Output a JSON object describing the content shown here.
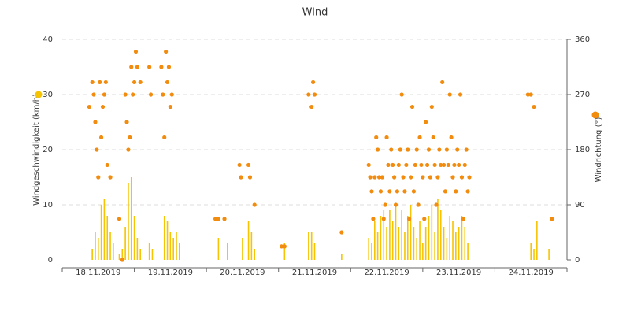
{
  "chart_data": {
    "type": "combo",
    "title": "Wind",
    "grid": true,
    "xlim": [
      "2019-11-18T00:00",
      "2019-11-25T00:00"
    ],
    "xticks": [
      "2019-11-18T00:00",
      "2019-11-19T00:00",
      "2019-11-20T00:00",
      "2019-11-21T00:00",
      "2019-11-22T00:00",
      "2019-11-23T00:00",
      "2019-11-24T00:00",
      "2019-11-25T00:00"
    ],
    "xtick_labels": [
      {
        "value": "2019-11-18T12:00",
        "label": "18.11.2019"
      },
      {
        "value": "2019-11-19T12:00",
        "label": "19.11.2019"
      },
      {
        "value": "2019-11-20T12:00",
        "label": "20.11.2019"
      },
      {
        "value": "2019-11-21T12:00",
        "label": "21.11.2019"
      },
      {
        "value": "2019-11-22T12:00",
        "label": "22.11.2019"
      },
      {
        "value": "2019-11-23T12:00",
        "label": "23.11.2019"
      },
      {
        "value": "2019-11-24T12:00",
        "label": "24.11.2019"
      }
    ],
    "ylim": [
      0,
      40
    ],
    "yticks": [
      0,
      10,
      20,
      30,
      40
    ],
    "y2lim": [
      0,
      360
    ],
    "y2ticks": [
      0,
      90,
      180,
      270,
      360
    ],
    "series": [
      {
        "name": "Windgeschwindigkeit (km/h)",
        "type": "bar",
        "color": "#f6c400",
        "x": [
          "2019-11-18T10:00",
          "2019-11-18T11:00",
          "2019-11-18T12:00",
          "2019-11-18T13:00",
          "2019-11-18T14:00",
          "2019-11-18T15:00",
          "2019-11-18T16:00",
          "2019-11-18T17:00",
          "2019-11-18T19:00",
          "2019-11-18T20:00",
          "2019-11-18T21:00",
          "2019-11-18T22:00",
          "2019-11-18T23:00",
          "2019-11-19T00:00",
          "2019-11-19T01:00",
          "2019-11-19T02:00",
          "2019-11-19T05:00",
          "2019-11-19T06:00",
          "2019-11-19T10:00",
          "2019-11-19T11:00",
          "2019-11-19T12:00",
          "2019-11-19T13:00",
          "2019-11-19T14:00",
          "2019-11-19T15:00",
          "2019-11-20T04:00",
          "2019-11-20T07:00",
          "2019-11-20T12:00",
          "2019-11-20T14:00",
          "2019-11-20T15:00",
          "2019-11-20T16:00",
          "2019-11-21T02:00",
          "2019-11-21T10:00",
          "2019-11-21T11:00",
          "2019-11-21T12:00",
          "2019-11-21T21:00",
          "2019-11-22T06:00",
          "2019-11-22T07:00",
          "2019-11-22T08:00",
          "2019-11-22T09:00",
          "2019-11-22T10:00",
          "2019-11-22T11:00",
          "2019-11-22T12:00",
          "2019-11-22T13:00",
          "2019-11-22T14:00",
          "2019-11-22T15:00",
          "2019-11-22T16:00",
          "2019-11-22T17:00",
          "2019-11-22T18:00",
          "2019-11-22T19:00",
          "2019-11-22T20:00",
          "2019-11-22T21:00",
          "2019-11-22T22:00",
          "2019-11-22T23:00",
          "2019-11-23T00:00",
          "2019-11-23T01:00",
          "2019-11-23T02:00",
          "2019-11-23T03:00",
          "2019-11-23T04:00",
          "2019-11-23T05:00",
          "2019-11-23T06:00",
          "2019-11-23T07:00",
          "2019-11-23T08:00",
          "2019-11-23T09:00",
          "2019-11-23T10:00",
          "2019-11-23T11:00",
          "2019-11-23T12:00",
          "2019-11-23T13:00",
          "2019-11-23T14:00",
          "2019-11-23T15:00",
          "2019-11-24T12:00",
          "2019-11-24T13:00",
          "2019-11-24T14:00",
          "2019-11-24T18:00"
        ],
        "values": [
          2,
          5,
          4,
          10,
          11,
          8,
          5,
          3,
          1,
          2,
          6,
          14,
          15,
          8,
          4,
          2,
          3,
          2,
          8,
          7,
          5,
          4,
          5,
          3,
          4,
          3,
          4,
          7,
          5,
          2,
          3,
          5,
          5,
          3,
          1,
          4,
          3,
          7,
          5,
          8,
          9,
          6,
          9,
          7,
          10,
          6,
          9,
          5,
          8,
          10,
          6,
          4,
          7,
          3,
          6,
          8,
          10,
          5,
          11,
          9,
          6,
          4,
          8,
          7,
          5,
          6,
          8,
          6,
          3,
          3,
          2,
          7,
          2
        ]
      },
      {
        "name": "Windrichtung (°)",
        "type": "scatter",
        "axis": "y2",
        "color": "#f28c0f",
        "x": [
          "2019-11-18T09:00",
          "2019-11-18T10:00",
          "2019-11-18T10:30",
          "2019-11-18T11:00",
          "2019-11-18T11:30",
          "2019-11-18T12:00",
          "2019-11-18T12:30",
          "2019-11-18T13:00",
          "2019-11-18T13:30",
          "2019-11-18T14:00",
          "2019-11-18T14:30",
          "2019-11-18T15:00",
          "2019-11-18T16:00",
          "2019-11-18T19:00",
          "2019-11-18T20:00",
          "2019-11-18T21:00",
          "2019-11-18T21:30",
          "2019-11-18T22:00",
          "2019-11-18T22:30",
          "2019-11-18T23:00",
          "2019-11-18T23:30",
          "2019-11-19T00:00",
          "2019-11-19T00:30",
          "2019-11-19T01:00",
          "2019-11-19T02:00",
          "2019-11-19T05:00",
          "2019-11-19T05:30",
          "2019-11-19T09:00",
          "2019-11-19T09:30",
          "2019-11-19T10:00",
          "2019-11-19T10:30",
          "2019-11-19T11:00",
          "2019-11-19T11:30",
          "2019-11-19T12:00",
          "2019-11-19T12:30",
          "2019-11-20T03:00",
          "2019-11-20T04:00",
          "2019-11-20T06:00",
          "2019-11-20T11:00",
          "2019-11-20T11:30",
          "2019-11-20T14:00",
          "2019-11-20T14:30",
          "2019-11-20T16:00",
          "2019-11-21T01:00",
          "2019-11-21T02:00",
          "2019-11-21T10:00",
          "2019-11-21T11:00",
          "2019-11-21T11:30",
          "2019-11-21T12:00",
          "2019-11-21T21:00",
          "2019-11-22T06:00",
          "2019-11-22T06:30",
          "2019-11-22T07:00",
          "2019-11-22T07:30",
          "2019-11-22T08:00",
          "2019-11-22T08:30",
          "2019-11-22T09:00",
          "2019-11-22T09:30",
          "2019-11-22T10:00",
          "2019-11-22T10:30",
          "2019-11-22T11:00",
          "2019-11-22T11:30",
          "2019-11-22T12:00",
          "2019-11-22T12:30",
          "2019-11-22T13:00",
          "2019-11-22T13:30",
          "2019-11-22T14:00",
          "2019-11-22T14:30",
          "2019-11-22T15:00",
          "2019-11-22T15:30",
          "2019-11-22T16:00",
          "2019-11-22T16:30",
          "2019-11-22T17:00",
          "2019-11-22T17:30",
          "2019-11-22T18:00",
          "2019-11-22T18:30",
          "2019-11-22T19:00",
          "2019-11-22T19:30",
          "2019-11-22T20:00",
          "2019-11-22T20:30",
          "2019-11-22T21:00",
          "2019-11-22T21:30",
          "2019-11-22T22:00",
          "2019-11-22T22:30",
          "2019-11-22T23:00",
          "2019-11-22T23:30",
          "2019-11-23T00:00",
          "2019-11-23T00:30",
          "2019-11-23T01:00",
          "2019-11-23T01:30",
          "2019-11-23T02:00",
          "2019-11-23T02:30",
          "2019-11-23T03:00",
          "2019-11-23T03:30",
          "2019-11-23T04:00",
          "2019-11-23T04:30",
          "2019-11-23T05:00",
          "2019-11-23T05:30",
          "2019-11-23T06:00",
          "2019-11-23T06:30",
          "2019-11-23T07:00",
          "2019-11-23T07:30",
          "2019-11-23T08:00",
          "2019-11-23T08:30",
          "2019-11-23T09:00",
          "2019-11-23T09:30",
          "2019-11-23T10:00",
          "2019-11-23T10:30",
          "2019-11-23T11:00",
          "2019-11-23T11:30",
          "2019-11-23T12:00",
          "2019-11-23T12:30",
          "2019-11-23T13:00",
          "2019-11-23T13:30",
          "2019-11-23T14:00",
          "2019-11-23T14:30",
          "2019-11-23T15:00",
          "2019-11-23T15:30",
          "2019-11-24T11:00",
          "2019-11-24T12:00",
          "2019-11-24T13:00",
          "2019-11-24T19:00"
        ],
        "values": [
          250,
          290,
          270,
          225,
          180,
          135,
          290,
          200,
          250,
          270,
          290,
          155,
          135,
          67,
          0,
          270,
          225,
          180,
          200,
          315,
          270,
          290,
          340,
          315,
          290,
          315,
          270,
          315,
          270,
          200,
          340,
          290,
          315,
          250,
          270,
          67,
          67,
          67,
          155,
          135,
          155,
          135,
          90,
          22,
          22,
          270,
          250,
          290,
          270,
          45,
          155,
          135,
          112,
          67,
          135,
          200,
          180,
          135,
          112,
          135,
          67,
          90,
          200,
          155,
          112,
          180,
          155,
          135,
          90,
          112,
          155,
          180,
          270,
          135,
          112,
          155,
          180,
          67,
          135,
          250,
          112,
          155,
          180,
          90,
          200,
          155,
          135,
          67,
          225,
          155,
          180,
          135,
          250,
          200,
          155,
          90,
          135,
          180,
          155,
          290,
          155,
          112,
          180,
          155,
          270,
          200,
          135,
          155,
          112,
          180,
          155,
          270,
          135,
          67,
          155,
          180,
          112,
          135,
          270,
          270,
          250,
          67
        ]
      }
    ]
  }
}
